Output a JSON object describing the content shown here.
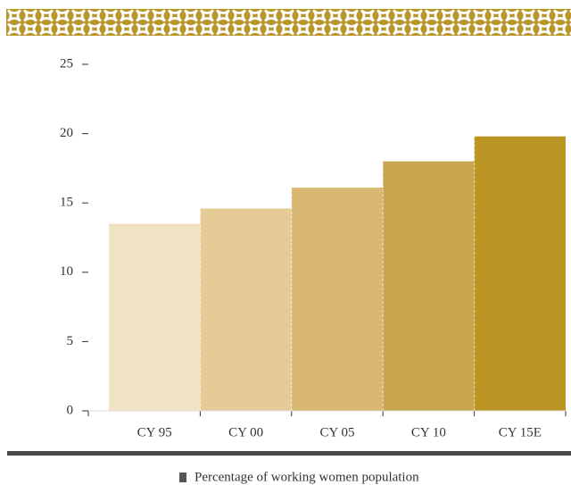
{
  "chart_data": {
    "type": "bar",
    "categories": [
      "CY 95",
      "CY 00",
      "CY 05",
      "CY 10",
      "CY 15E"
    ],
    "series": [
      {
        "name": "Percentage of working women population",
        "color": "#555555",
        "colors": [
          "#f0e3c4",
          "#e5cc96",
          "#d8b872",
          "#c9a64e",
          "#bc9624"
        ],
        "values": [
          13.5,
          14.6,
          16.1,
          18.0,
          19.8
        ]
      }
    ],
    "ylim": [
      0,
      25
    ],
    "yticks": [
      0,
      5,
      10,
      15,
      20,
      25
    ],
    "grid": false,
    "legend": "bottom"
  }
}
